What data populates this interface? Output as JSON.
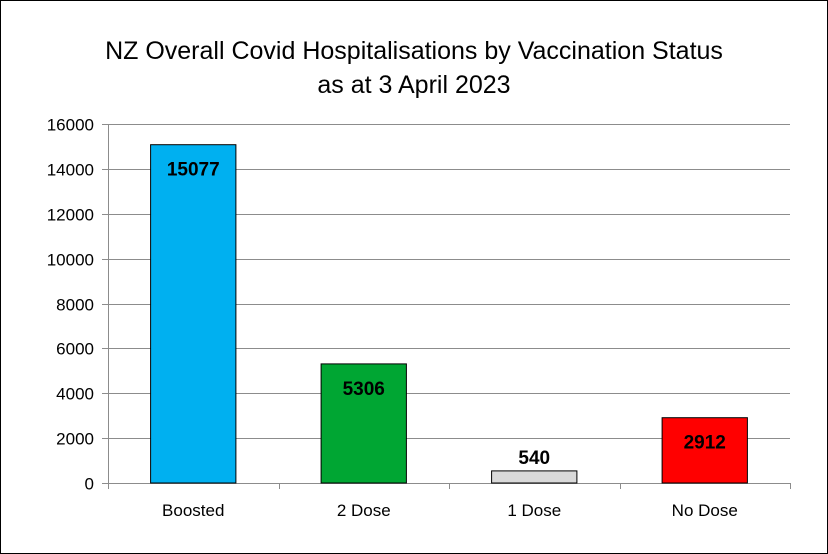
{
  "chart_data": {
    "type": "bar",
    "title": "NZ Overall Covid Hospitalisations by Vaccination Status",
    "subtitle": "as at 3 April 2023",
    "categories": [
      "Boosted",
      "2 Dose",
      "1 Dose",
      "No Dose"
    ],
    "values": [
      15077,
      5306,
      540,
      2912
    ],
    "data_labels": [
      "15077",
      "5306",
      "540",
      "2912"
    ],
    "data_label_position": [
      "inside-top",
      "inside-top",
      "above",
      "inside-top"
    ],
    "bar_colors": [
      "#00b0f0",
      "#00a633",
      "#d9d9d9",
      "#ff0000"
    ],
    "ylim": [
      0,
      16000
    ],
    "yticks": [
      0,
      2000,
      4000,
      6000,
      8000,
      10000,
      12000,
      14000,
      16000
    ],
    "xlabel": "",
    "ylabel": "",
    "grid": true,
    "legend": "none"
  }
}
